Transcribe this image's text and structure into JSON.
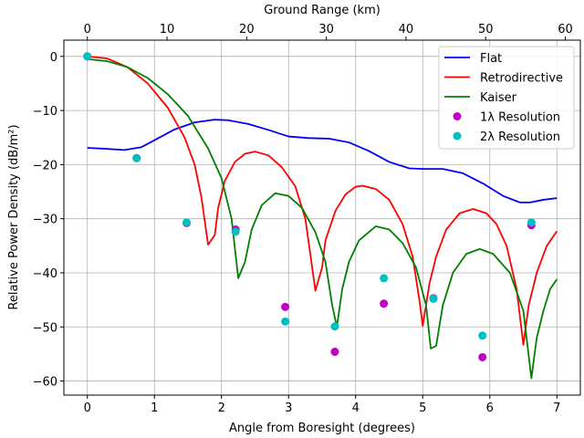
{
  "chart_data": {
    "type": "line",
    "xlabel": "Angle from Boresight (degrees)",
    "ylabel": "Relative Power Density (dB/m²)",
    "ylabel_parts": {
      "main": "Relative Power Density (",
      "unit": "dB/m",
      "sup": "2",
      ")": ")"
    },
    "top_xlabel": "Ground Range (km)",
    "xlim": [
      -0.35,
      7.35
    ],
    "ylim": [
      -62.6,
      3.0
    ],
    "xticks": [
      0,
      1,
      2,
      3,
      4,
      5,
      6,
      7
    ],
    "yticks": [
      0,
      -10,
      -20,
      -30,
      -40,
      -50,
      -60
    ],
    "top_xticks": [
      0,
      10,
      20,
      30,
      40,
      50,
      60
    ],
    "grid": true,
    "legend": "top-right",
    "series": [
      {
        "name": "Flat",
        "kind": "line",
        "color": "#0000ff",
        "points": [
          [
            0,
            -16.9
          ],
          [
            0.3,
            -17.1
          ],
          [
            0.55,
            -17.3
          ],
          [
            0.8,
            -16.8
          ],
          [
            1.0,
            -15.5
          ],
          [
            1.3,
            -13.5
          ],
          [
            1.6,
            -12.2
          ],
          [
            1.9,
            -11.7
          ],
          [
            2.1,
            -11.8
          ],
          [
            2.4,
            -12.5
          ],
          [
            2.7,
            -13.6
          ],
          [
            3.0,
            -14.8
          ],
          [
            3.3,
            -15.1
          ],
          [
            3.6,
            -15.2
          ],
          [
            3.9,
            -15.9
          ],
          [
            4.2,
            -17.5
          ],
          [
            4.5,
            -19.5
          ],
          [
            4.8,
            -20.7
          ],
          [
            5.0,
            -20.8
          ],
          [
            5.3,
            -20.8
          ],
          [
            5.6,
            -21.6
          ],
          [
            5.9,
            -23.5
          ],
          [
            6.2,
            -25.8
          ],
          [
            6.45,
            -27
          ],
          [
            6.6,
            -27
          ],
          [
            6.8,
            -26.5
          ],
          [
            7,
            -26.2
          ]
        ]
      },
      {
        "name": "Retrodirective",
        "kind": "line",
        "color": "#ff0000",
        "points": [
          [
            0,
            0
          ],
          [
            0.3,
            -0.4
          ],
          [
            0.6,
            -2
          ],
          [
            0.9,
            -5
          ],
          [
            1.2,
            -9.5
          ],
          [
            1.45,
            -15
          ],
          [
            1.6,
            -20
          ],
          [
            1.7,
            -26
          ],
          [
            1.8,
            -34.8
          ],
          [
            1.9,
            -33
          ],
          [
            1.95,
            -28
          ],
          [
            2.05,
            -23
          ],
          [
            2.2,
            -19.5
          ],
          [
            2.35,
            -18
          ],
          [
            2.5,
            -17.6
          ],
          [
            2.7,
            -18.3
          ],
          [
            2.9,
            -20.5
          ],
          [
            3.1,
            -24
          ],
          [
            3.25,
            -30
          ],
          [
            3.4,
            -43.3
          ],
          [
            3.5,
            -39
          ],
          [
            3.55,
            -34
          ],
          [
            3.7,
            -28.5
          ],
          [
            3.85,
            -25.5
          ],
          [
            4.0,
            -24.1
          ],
          [
            4.1,
            -23.9
          ],
          [
            4.3,
            -24.5
          ],
          [
            4.5,
            -26.5
          ],
          [
            4.7,
            -31
          ],
          [
            4.85,
            -37
          ],
          [
            4.95,
            -45
          ],
          [
            5.0,
            -49.8
          ],
          [
            5.1,
            -42
          ],
          [
            5.2,
            -37
          ],
          [
            5.35,
            -32
          ],
          [
            5.55,
            -29
          ],
          [
            5.75,
            -28.2
          ],
          [
            5.95,
            -29
          ],
          [
            6.1,
            -31
          ],
          [
            6.25,
            -35
          ],
          [
            6.4,
            -43
          ],
          [
            6.5,
            -53.3
          ],
          [
            6.58,
            -46
          ],
          [
            6.7,
            -40
          ],
          [
            6.85,
            -35
          ],
          [
            7,
            -32.3
          ]
        ]
      },
      {
        "name": "Kaiser",
        "kind": "line",
        "color": "#008000",
        "points": [
          [
            0,
            -0.5
          ],
          [
            0.3,
            -0.9
          ],
          [
            0.6,
            -2
          ],
          [
            0.9,
            -4
          ],
          [
            1.2,
            -7
          ],
          [
            1.5,
            -11
          ],
          [
            1.8,
            -17
          ],
          [
            2.0,
            -22.5
          ],
          [
            2.15,
            -30
          ],
          [
            2.25,
            -41
          ],
          [
            2.35,
            -38
          ],
          [
            2.45,
            -32
          ],
          [
            2.6,
            -27.5
          ],
          [
            2.8,
            -25.3
          ],
          [
            3.0,
            -25.8
          ],
          [
            3.2,
            -28
          ],
          [
            3.4,
            -32.5
          ],
          [
            3.55,
            -38
          ],
          [
            3.65,
            -46
          ],
          [
            3.72,
            -50
          ],
          [
            3.8,
            -43
          ],
          [
            3.9,
            -38
          ],
          [
            4.05,
            -34
          ],
          [
            4.3,
            -31.4
          ],
          [
            4.5,
            -32
          ],
          [
            4.7,
            -34.5
          ],
          [
            4.9,
            -39
          ],
          [
            5.05,
            -46
          ],
          [
            5.12,
            -54
          ],
          [
            5.2,
            -53.5
          ],
          [
            5.3,
            -46
          ],
          [
            5.45,
            -40
          ],
          [
            5.65,
            -36.5
          ],
          [
            5.85,
            -35.6
          ],
          [
            6.05,
            -36.5
          ],
          [
            6.3,
            -40
          ],
          [
            6.5,
            -47
          ],
          [
            6.62,
            -59.5
          ],
          [
            6.7,
            -52
          ],
          [
            6.8,
            -47
          ],
          [
            6.9,
            -43
          ],
          [
            7,
            -41.2
          ]
        ]
      },
      {
        "name": "1λ Resolution",
        "kind": "scatter",
        "color": "#bf00bf",
        "points": [
          [
            0,
            0
          ],
          [
            0.735,
            -18.8
          ],
          [
            1.48,
            -30.8
          ],
          [
            2.21,
            -32.0
          ],
          [
            2.95,
            -46.3
          ],
          [
            3.69,
            -54.6
          ],
          [
            4.42,
            -45.7
          ],
          [
            5.16,
            -44.7
          ],
          [
            5.89,
            -55.6
          ],
          [
            6.62,
            -31.2
          ]
        ]
      },
      {
        "name": "2λ Resolution",
        "kind": "scatter",
        "color": "#00bfbf",
        "points": [
          [
            0,
            0
          ],
          [
            0.735,
            -18.8
          ],
          [
            1.48,
            -30.7
          ],
          [
            2.21,
            -32.4
          ],
          [
            2.95,
            -49.0
          ],
          [
            3.69,
            -49.9
          ],
          [
            4.42,
            -41.0
          ],
          [
            5.16,
            -44.8
          ],
          [
            5.89,
            -51.6
          ],
          [
            6.62,
            -30.7
          ]
        ]
      }
    ]
  }
}
